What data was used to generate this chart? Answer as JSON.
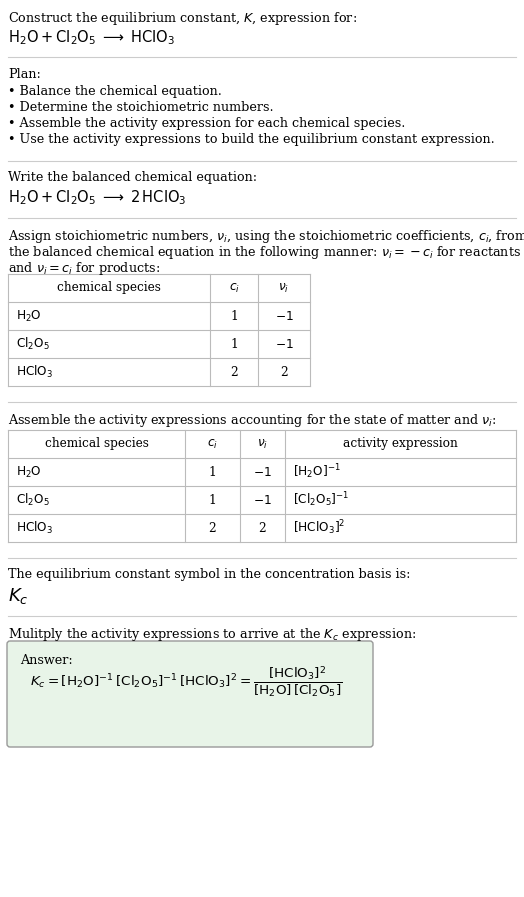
{
  "title_line1": "Construct the equilibrium constant, $K$, expression for:",
  "title_line2": "$\\mathrm{H_2O + Cl_2O_5 \\;\\longrightarrow\\; HClO_3}$",
  "plan_header": "Plan:",
  "plan_items": [
    "• Balance the chemical equation.",
    "• Determine the stoichiometric numbers.",
    "• Assemble the activity expression for each chemical species.",
    "• Use the activity expressions to build the equilibrium constant expression."
  ],
  "balanced_header": "Write the balanced chemical equation:",
  "balanced_eq": "$\\mathrm{H_2O + Cl_2O_5 \\;\\longrightarrow\\; 2\\,HClO_3}$",
  "stoich_line1": "Assign stoichiometric numbers, $\\nu_i$, using the stoichiometric coefficients, $c_i$, from",
  "stoich_line2": "the balanced chemical equation in the following manner: $\\nu_i = -c_i$ for reactants",
  "stoich_line3": "and $\\nu_i = c_i$ for products:",
  "table1_col_headers": [
    "chemical species",
    "$c_i$",
    "$\\nu_i$"
  ],
  "table1_rows": [
    [
      "$\\mathrm{H_2O}$",
      "1",
      "$-1$"
    ],
    [
      "$\\mathrm{Cl_2O_5}$",
      "1",
      "$-1$"
    ],
    [
      "$\\mathrm{HClO_3}$",
      "2",
      "2"
    ]
  ],
  "activity_header": "Assemble the activity expressions accounting for the state of matter and $\\nu_i$:",
  "table2_col_headers": [
    "chemical species",
    "$c_i$",
    "$\\nu_i$",
    "activity expression"
  ],
  "table2_rows": [
    [
      "$\\mathrm{H_2O}$",
      "1",
      "$-1$",
      "$[\\mathrm{H_2O}]^{-1}$"
    ],
    [
      "$\\mathrm{Cl_2O_5}$",
      "1",
      "$-1$",
      "$[\\mathrm{Cl_2O_5}]^{-1}$"
    ],
    [
      "$\\mathrm{HClO_3}$",
      "2",
      "2",
      "$[\\mathrm{HClO_3}]^{2}$"
    ]
  ],
  "kc_header": "The equilibrium constant symbol in the concentration basis is:",
  "kc_symbol": "$K_c$",
  "multiply_header": "Mulitply the activity expressions to arrive at the $K_c$ expression:",
  "answer_label": "Answer:",
  "answer_eq": "$K_c = [\\mathrm{H_2O}]^{-1}\\,[\\mathrm{Cl_2O_5}]^{-1}\\,[\\mathrm{HClO_3}]^{2} = \\dfrac{[\\mathrm{HClO_3}]^2}{[\\mathrm{H_2O}]\\,[\\mathrm{Cl_2O_5}]}$",
  "bg_color": "#ffffff",
  "text_color": "#000000",
  "table_line_color": "#bbbbbb",
  "answer_box_color": "#e8f4e8",
  "answer_box_border": "#999999",
  "font_size": 9.2,
  "title_font_size": 9.2,
  "eq_font_size": 10.5,
  "kc_font_size": 13
}
